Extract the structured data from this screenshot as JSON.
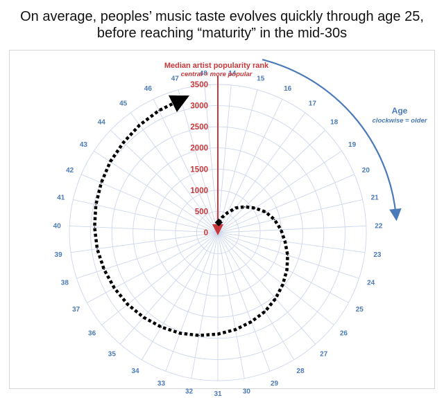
{
  "chart_data": {
    "type": "line",
    "subtype": "polar",
    "title": "On average, peoples’ music taste evolves quickly through age 25, before reaching “maturity” in the mid-30s",
    "radial_axis": {
      "label": "Median artist popularity rank",
      "sublabel": "central = more popular",
      "ticks": [
        0,
        500,
        1000,
        1500,
        2000,
        2500,
        3000,
        3500
      ],
      "range": [
        0,
        3500
      ],
      "color": "#c8373a"
    },
    "angular_axis": {
      "label": "Age",
      "sublabel": "clockwise = older",
      "ticks": [
        14,
        15,
        16,
        17,
        18,
        19,
        20,
        21,
        22,
        23,
        24,
        25,
        26,
        27,
        28,
        29,
        30,
        31,
        32,
        33,
        34,
        35,
        36,
        37,
        38,
        39,
        40,
        41,
        42,
        43,
        44,
        45,
        46,
        47,
        48
      ],
      "range": [
        14,
        49
      ],
      "direction": "clockwise",
      "color": "#4a7ab8"
    },
    "series": [
      {
        "x": [
          14,
          15,
          16,
          17,
          18,
          19,
          20,
          21,
          22,
          23,
          24,
          25,
          26,
          27,
          28,
          29,
          30,
          31,
          32,
          33,
          34,
          35,
          36,
          37,
          38,
          39,
          40,
          41,
          42,
          43,
          44,
          45,
          46,
          47
        ],
        "values": [
          240,
          370,
          520,
          720,
          880,
          1050,
          1230,
          1370,
          1490,
          1600,
          1730,
          1850,
          1960,
          2070,
          2170,
          2250,
          2330,
          2400,
          2470,
          2540,
          2600,
          2660,
          2720,
          2770,
          2820,
          2870,
          2910,
          2950,
          2990,
          3040,
          3080,
          3140,
          3200,
          3260
        ]
      }
    ],
    "grid": true,
    "colors": {
      "grid": "#cdd6ec",
      "series": "#000000",
      "radial": "#c8373a",
      "angular": "#4a7ab8"
    }
  }
}
